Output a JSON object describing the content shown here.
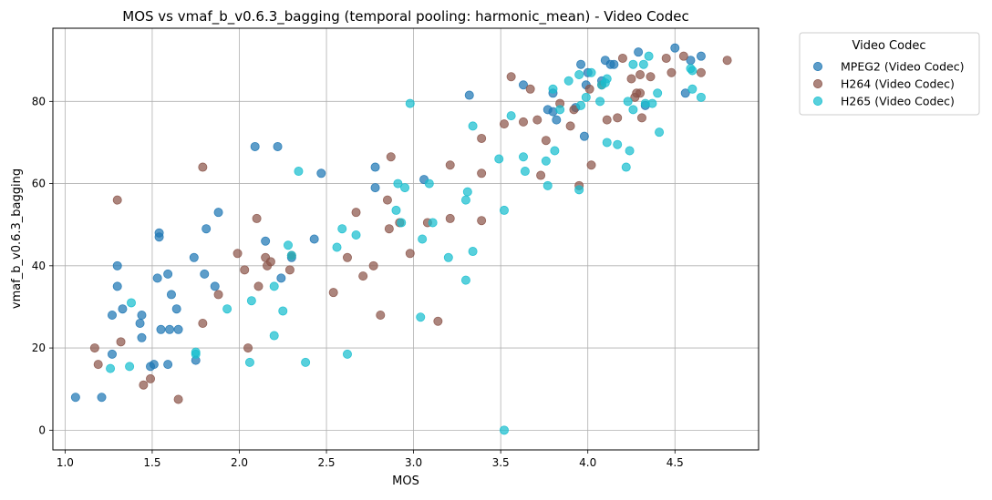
{
  "chart_data": {
    "type": "scatter",
    "title": "MOS vs vmaf_b_v0.6.3_bagging (temporal pooling: harmonic_mean) - Video Codec",
    "xlabel": "MOS",
    "ylabel": "vmaf_b_v0.6.3_bagging",
    "xlim": [
      0.93,
      4.98
    ],
    "ylim": [
      -4.8,
      97.8
    ],
    "xticks": [
      1.0,
      1.5,
      2.0,
      2.5,
      3.0,
      3.5,
      4.0,
      4.5
    ],
    "xtick_labels": [
      "1.0",
      "1.5",
      "2.0",
      "2.5",
      "3.0",
      "3.5",
      "4.0",
      "4.5"
    ],
    "yticks": [
      0,
      20,
      40,
      60,
      80
    ],
    "ytick_labels": [
      "0",
      "20",
      "40",
      "60",
      "80"
    ],
    "grid": true,
    "legend": {
      "title": "Video Codec",
      "placement": "outside-top-right"
    },
    "series": [
      {
        "name": "MPEG2 (Video Codec)",
        "color": "#1f77b4",
        "points": [
          [
            1.06,
            8
          ],
          [
            1.21,
            8
          ],
          [
            1.27,
            28
          ],
          [
            1.27,
            18.5
          ],
          [
            1.3,
            40
          ],
          [
            1.3,
            35
          ],
          [
            1.33,
            29.5
          ],
          [
            1.43,
            26
          ],
          [
            1.44,
            28
          ],
          [
            1.44,
            22.5
          ],
          [
            1.49,
            15.5
          ],
          [
            1.51,
            16
          ],
          [
            1.53,
            37
          ],
          [
            1.54,
            48
          ],
          [
            1.54,
            47
          ],
          [
            1.55,
            24.5
          ],
          [
            1.59,
            38
          ],
          [
            1.59,
            16
          ],
          [
            1.6,
            24.5
          ],
          [
            1.61,
            33
          ],
          [
            1.64,
            29.5
          ],
          [
            1.65,
            24.5
          ],
          [
            1.74,
            42
          ],
          [
            1.75,
            17
          ],
          [
            1.8,
            38
          ],
          [
            1.81,
            49
          ],
          [
            1.86,
            35
          ],
          [
            1.88,
            53
          ],
          [
            2.09,
            69
          ],
          [
            2.15,
            46
          ],
          [
            2.22,
            69
          ],
          [
            2.24,
            37
          ],
          [
            2.3,
            42
          ],
          [
            2.43,
            46.5
          ],
          [
            2.47,
            62.5
          ],
          [
            2.78,
            64
          ],
          [
            2.78,
            59
          ],
          [
            3.06,
            61
          ],
          [
            3.32,
            81.5
          ],
          [
            3.63,
            84
          ],
          [
            3.77,
            78
          ],
          [
            3.8,
            82
          ],
          [
            3.8,
            77.5
          ],
          [
            3.82,
            75.5
          ],
          [
            3.93,
            78.5
          ],
          [
            3.96,
            89
          ],
          [
            3.98,
            71.5
          ],
          [
            3.99,
            84
          ],
          [
            4.0,
            87
          ],
          [
            4.08,
            85
          ],
          [
            4.1,
            90
          ],
          [
            4.13,
            89
          ],
          [
            4.15,
            89
          ],
          [
            4.29,
            92
          ],
          [
            4.33,
            79
          ],
          [
            4.5,
            93
          ],
          [
            4.56,
            82
          ],
          [
            4.59,
            90
          ],
          [
            4.65,
            91
          ]
        ]
      },
      {
        "name": "H264 (Video Codec)",
        "color": "#8c564b",
        "points": [
          [
            1.17,
            20
          ],
          [
            1.19,
            16
          ],
          [
            1.3,
            56
          ],
          [
            1.32,
            21.5
          ],
          [
            1.45,
            11
          ],
          [
            1.49,
            12.5
          ],
          [
            1.65,
            7.5
          ],
          [
            1.79,
            64
          ],
          [
            1.79,
            26
          ],
          [
            1.88,
            33
          ],
          [
            1.99,
            43
          ],
          [
            2.03,
            39
          ],
          [
            2.05,
            20
          ],
          [
            2.1,
            51.5
          ],
          [
            2.11,
            35
          ],
          [
            2.15,
            42
          ],
          [
            2.16,
            40
          ],
          [
            2.18,
            41
          ],
          [
            2.29,
            39
          ],
          [
            2.3,
            42.5
          ],
          [
            2.54,
            33.5
          ],
          [
            2.62,
            42
          ],
          [
            2.67,
            53
          ],
          [
            2.71,
            37.5
          ],
          [
            2.77,
            40
          ],
          [
            2.81,
            28
          ],
          [
            2.85,
            56
          ],
          [
            2.86,
            49
          ],
          [
            2.87,
            66.5
          ],
          [
            2.92,
            50.5
          ],
          [
            2.98,
            43
          ],
          [
            3.08,
            50.5
          ],
          [
            3.14,
            26.5
          ],
          [
            3.21,
            51.5
          ],
          [
            3.21,
            64.5
          ],
          [
            3.39,
            62.5
          ],
          [
            3.39,
            51
          ],
          [
            3.39,
            71
          ],
          [
            3.52,
            74.5
          ],
          [
            3.56,
            86
          ],
          [
            3.63,
            75
          ],
          [
            3.67,
            83
          ],
          [
            3.71,
            75.5
          ],
          [
            3.73,
            62
          ],
          [
            3.76,
            70.5
          ],
          [
            3.84,
            79.5
          ],
          [
            3.9,
            74
          ],
          [
            3.92,
            78
          ],
          [
            3.95,
            59.5
          ],
          [
            4.01,
            83
          ],
          [
            4.02,
            64.5
          ],
          [
            4.08,
            84
          ],
          [
            4.11,
            75.5
          ],
          [
            4.17,
            76
          ],
          [
            4.2,
            90.5
          ],
          [
            4.25,
            85.5
          ],
          [
            4.27,
            81
          ],
          [
            4.28,
            82
          ],
          [
            4.3,
            86.5
          ],
          [
            4.3,
            82
          ],
          [
            4.31,
            76
          ],
          [
            4.36,
            86
          ],
          [
            4.45,
            90.5
          ],
          [
            4.48,
            87
          ],
          [
            4.55,
            91
          ],
          [
            4.65,
            87
          ],
          [
            4.8,
            90
          ]
        ]
      },
      {
        "name": "H265 (Video Codec)",
        "color": "#17becf",
        "points": [
          [
            1.26,
            15
          ],
          [
            1.37,
            15.5
          ],
          [
            1.38,
            31
          ],
          [
            1.75,
            18.5
          ],
          [
            1.75,
            19
          ],
          [
            1.93,
            29.5
          ],
          [
            2.06,
            16.5
          ],
          [
            2.07,
            31.5
          ],
          [
            2.2,
            23
          ],
          [
            2.2,
            35
          ],
          [
            2.25,
            29
          ],
          [
            2.28,
            45
          ],
          [
            2.3,
            42.5
          ],
          [
            2.34,
            63
          ],
          [
            2.38,
            16.5
          ],
          [
            2.56,
            44.5
          ],
          [
            2.59,
            49
          ],
          [
            2.62,
            18.5
          ],
          [
            2.67,
            47.5
          ],
          [
            2.9,
            53.5
          ],
          [
            2.91,
            60
          ],
          [
            2.93,
            50.5
          ],
          [
            2.95,
            59
          ],
          [
            2.98,
            79.5
          ],
          [
            3.04,
            27.5
          ],
          [
            3.05,
            46.5
          ],
          [
            3.09,
            60
          ],
          [
            3.11,
            50.5
          ],
          [
            3.2,
            42
          ],
          [
            3.3,
            36.5
          ],
          [
            3.3,
            56
          ],
          [
            3.31,
            58
          ],
          [
            3.34,
            43.5
          ],
          [
            3.34,
            74
          ],
          [
            3.49,
            66
          ],
          [
            3.52,
            53.5
          ],
          [
            3.52,
            0
          ],
          [
            3.56,
            76.5
          ],
          [
            3.63,
            66.5
          ],
          [
            3.64,
            63
          ],
          [
            3.76,
            65.5
          ],
          [
            3.77,
            59.5
          ],
          [
            3.8,
            83
          ],
          [
            3.81,
            68
          ],
          [
            3.84,
            78
          ],
          [
            3.89,
            85
          ],
          [
            3.95,
            58.5
          ],
          [
            3.95,
            86.5
          ],
          [
            3.96,
            79
          ],
          [
            3.99,
            81
          ],
          [
            4.02,
            87
          ],
          [
            4.07,
            80
          ],
          [
            4.08,
            84
          ],
          [
            4.1,
            84.5
          ],
          [
            4.11,
            85.5
          ],
          [
            4.11,
            70
          ],
          [
            4.17,
            69.5
          ],
          [
            4.22,
            64
          ],
          [
            4.23,
            80
          ],
          [
            4.24,
            68
          ],
          [
            4.26,
            78
          ],
          [
            4.26,
            89
          ],
          [
            4.32,
            89
          ],
          [
            4.33,
            79.5
          ],
          [
            4.35,
            91
          ],
          [
            4.37,
            79.5
          ],
          [
            4.4,
            82
          ],
          [
            4.41,
            72.5
          ],
          [
            4.59,
            88
          ],
          [
            4.6,
            83
          ],
          [
            4.6,
            87.5
          ],
          [
            4.65,
            81
          ]
        ]
      }
    ]
  }
}
